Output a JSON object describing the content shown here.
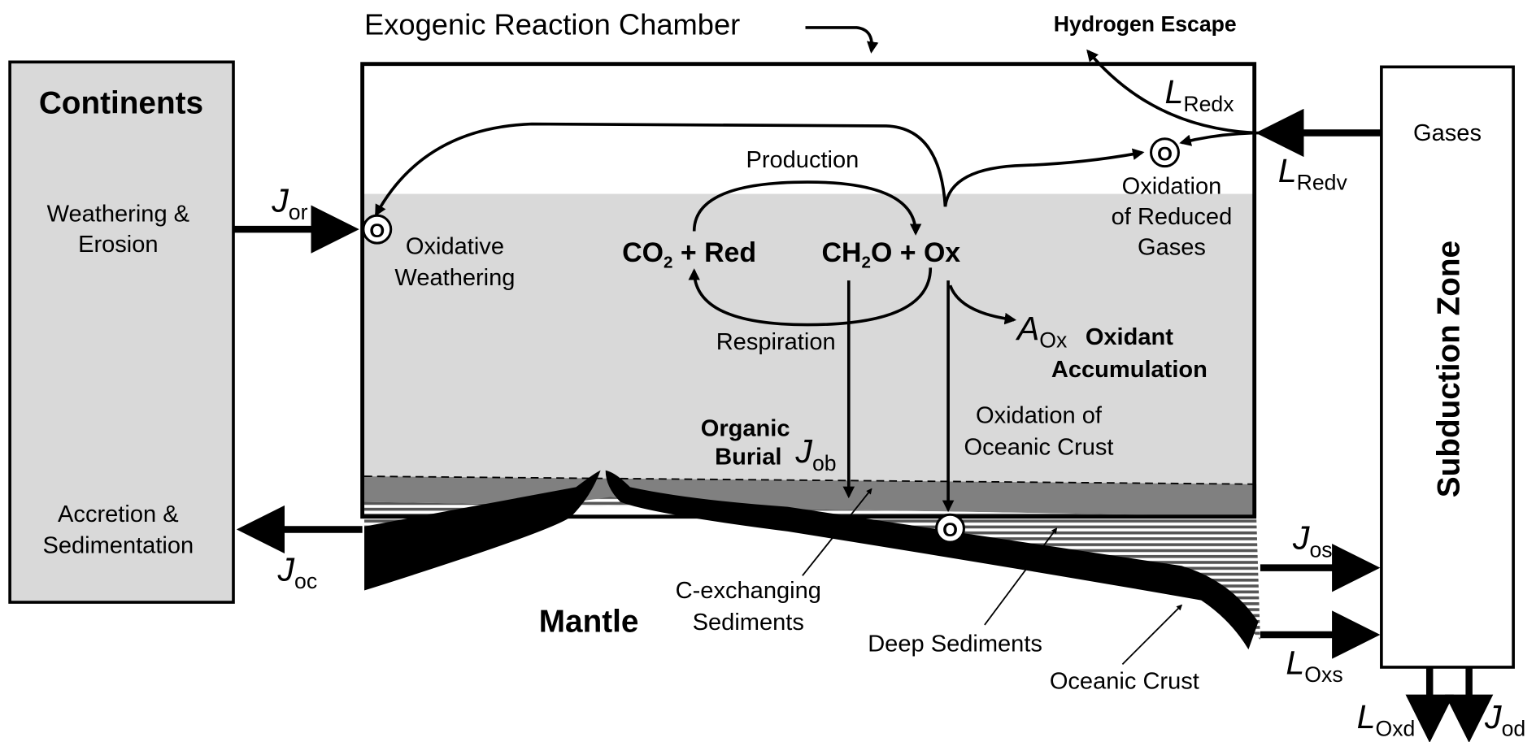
{
  "chamber_title": "Exogenic Reaction Chamber",
  "hydrogen_escape": "Hydrogen Escape",
  "continents": {
    "title": "Continents",
    "weathering": [
      "Weathering &",
      "Erosion"
    ],
    "accretion": [
      "Accretion &",
      "Sedimentation"
    ]
  },
  "fluxes": {
    "j_or": {
      "symbol": "J",
      "subscript": "or"
    },
    "j_oc": {
      "symbol": "J",
      "subscript": "oc"
    },
    "l_redx": {
      "symbol": "L",
      "subscript": "Redx"
    },
    "l_redv": {
      "symbol": "L",
      "subscript": "Redv"
    },
    "a_ox": {
      "symbol": "A",
      "subscript": "Ox"
    },
    "j_ob": {
      "symbol": "J",
      "subscript": "ob"
    },
    "j_os": {
      "symbol": "J",
      "subscript": "os"
    },
    "l_oxs": {
      "symbol": "L",
      "subscript": "Oxs"
    },
    "l_oxd": {
      "symbol": "L",
      "subscript": "Oxd"
    },
    "j_od": {
      "symbol": "J",
      "subscript": "od"
    }
  },
  "processes": {
    "production": "Production",
    "respiration": "Respiration",
    "oxidative_weathering": [
      "Oxidative",
      "Weathering"
    ],
    "oxidation_gases": [
      "Oxidation",
      "of Reduced",
      "Gases"
    ],
    "oxidant_accumulation": [
      "Oxidant",
      "Accumulation"
    ],
    "organic_burial": [
      "Organic",
      "Burial"
    ],
    "oxidation_crust": [
      "Oxidation of",
      "Oceanic Crust"
    ]
  },
  "reaction": {
    "left": {
      "a": "CO",
      "sub": "2",
      "b": " + Red"
    },
    "right": {
      "a": "CH",
      "sub": "2",
      "b": "O + Ox"
    }
  },
  "oxidation_marker": "O",
  "layers": {
    "c_exchanging": [
      "C-exchanging",
      "Sediments"
    ],
    "deep": "Deep Sediments",
    "crust": "Oceanic Crust",
    "mantle": "Mantle"
  },
  "subduction": {
    "title": "Subduction Zone",
    "gases": "Gases"
  }
}
